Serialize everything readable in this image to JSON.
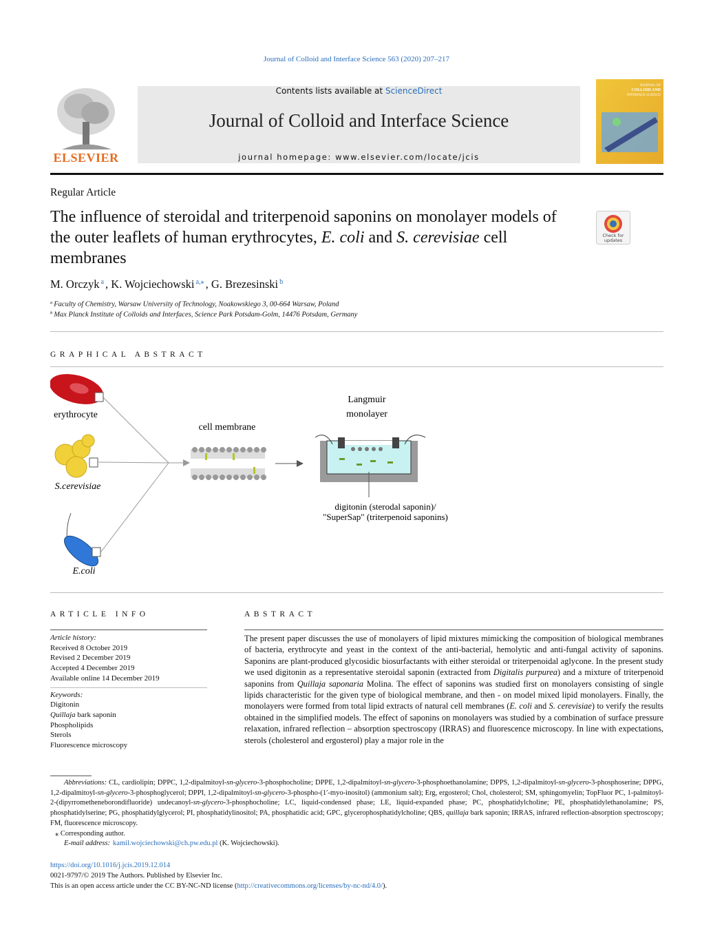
{
  "journal_ref": "Journal of Colloid and Interface Science 563 (2020) 207–217",
  "header": {
    "contents": "Contents lists available at",
    "sciencedirect": "ScienceDirect",
    "journal_title": "Journal of Colloid and Interface Science",
    "homepage": "journal homepage: www.elsevier.com/locate/jcis",
    "publisher": "ELSEVIER",
    "cover_title": [
      "JOURNAL OF",
      "COLLOID AND",
      "INTERFACE SCIENCE"
    ]
  },
  "badge": [
    "Check for",
    "updates"
  ],
  "article_type": "Regular Article",
  "title": [
    "The influence of steroidal and triterpenoid saponins on monolayer models of the outer leaflets of human erythrocytes, ",
    {
      "italic": "E. coli"
    },
    " and ",
    {
      "italic": "S. cerevisiae"
    },
    " cell membranes"
  ],
  "authors": [
    "M. Orczyk",
    {
      "sup": "a"
    },
    ", K. Wojciechowski",
    {
      "sup": "a,⁎"
    },
    ", G. Brezesinski",
    {
      "sup": "b"
    }
  ],
  "affiliations": [
    [
      {
        "sup": "a"
      },
      "Faculty of Chemistry, Warsaw University of Technology, Noakowskiego 3, 00-664 Warsaw, Poland"
    ],
    [
      {
        "sup": "b"
      },
      "Max Planck Institute of Colloids and Interfaces, Science Park Potsdam-Golm, 14476 Potsdam, Germany"
    ]
  ],
  "graphical_abstract": {
    "heading": "GRAPHICAL ABSTRACT",
    "labels": {
      "erythrocyte": "erythrocyte",
      "yeast": "S.cerevisiae",
      "bacteria": "E.coli",
      "membrane": "cell membrane",
      "langmuir": [
        "Langmuir",
        "monolayer"
      ],
      "saponins": [
        "digitonin (sterodal saponin)/",
        "\"SuperSap\" (triterpenoid saponins)"
      ]
    }
  },
  "article_info": {
    "heading": "ARTICLE INFO",
    "history_label": "Article history:",
    "history": [
      "Received 8 October 2019",
      "Revised 2 December 2019",
      "Accepted 4 December 2019",
      "Available online 14 December 2019"
    ],
    "keywords_label": "Keywords:",
    "keywords": [
      [
        "Digitonin"
      ],
      [
        {
          "italic": "Quillaja"
        },
        " bark saponin"
      ],
      [
        "Phospholipids"
      ],
      [
        "Sterols"
      ],
      [
        "Fluorescence microscopy"
      ]
    ]
  },
  "abstract": {
    "heading": "ABSTRACT",
    "text": [
      "The present paper discusses the use of monolayers of lipid mixtures mimicking the composition of biological membranes of bacteria, erythrocyte and yeast in the context of the anti-bacterial, hemolytic and anti-fungal activity of saponins. Saponins are plant-produced glycosidic biosurfactants with either steroidal or triterpenoidal aglycone. In the present study we used digitonin as a representative steroidal saponin (extracted from ",
      {
        "italic": "Digitalis purpurea"
      },
      ") and a mixture of triterpenoid saponins from ",
      {
        "italic": "Quillaja saponaria"
      },
      " Molina. The effect of saponins was studied first on monolayers consisting of single lipids characteristic for the given type of biological membrane, and then - on model mixed lipid monolayers. Finally, the monolayers were formed from total lipid extracts of natural cell membranes (",
      {
        "italic": "E. coli"
      },
      " and ",
      {
        "italic": "S. cerevisiae"
      },
      ") to verify the results obtained in the simplified models. The effect of saponins on monolayers was studied by a combination of surface pressure relaxation, infrared reflection – absorption spectroscopy (IRRAS) and fluorescence microscopy. In line with expectations, sterols (cholesterol and ergosterol) play a major role in the"
    ]
  },
  "footnotes": {
    "abbreviations": [
      {
        "italic": "Abbreviations:"
      },
      " CL, cardiolipin; DPPC, 1,2-dipalmitoyl-",
      {
        "italic": "sn-glycero"
      },
      "-3-phosphocholine; DPPE, 1,2-dipalmitoyl-",
      {
        "italic": "sn-glycero"
      },
      "-3-phosphoethanolamine; DPPS, 1,2-dipalmitoyl-",
      {
        "italic": "sn-glycero"
      },
      "-3-phosphoserine; DPPG, 1,2-dipalmitoyl-",
      {
        "italic": "sn-glycero"
      },
      "-3-phosphoglycerol; DPPI, 1,2-dipalmitoyl-",
      {
        "italic": "sn-glycero"
      },
      "-3-phospho-(1′-myo-inositol) (ammonium salt); Erg, ergosterol; Chol, cholesterol; SM, sphingomyelin; TopFluor PC, 1-palmitoyl-2-(dipyrrometheneborondifluoride) undecanoyl-",
      {
        "italic": "sn-glycero"
      },
      "-3-phosphocholine; LC, liquid-condensed phase; LE, liquid-expanded phase; PC, phosphatidylcholine; PE, phosphatidylethanolamine; PS, phosphatidylserine; PG, phosphatidylglycerol; PI, phosphatidylinositol; PA, phosphatidic acid; GPC, glycerophosphatidylcholine; QBS, ",
      {
        "italic": "quillaja"
      },
      " bark saponin; IRRAS, infrared reflection-absorption spectroscopy; FM, fluorescence microscopy."
    ],
    "corresponding": "⁎ Corresponding author.",
    "email": [
      {
        "italic": "E-mail address:"
      },
      {
        "link": "kamil.wojciechowski@ch.pw.edu.pl"
      },
      " (K. Wojciechowski)."
    ]
  },
  "footer": {
    "doi": "https://doi.org/10.1016/j.jcis.2019.12.014",
    "copyright": "0021-9797/© 2019 The Authors. Published by Elsevier Inc.",
    "license": [
      "This is an open access article under the CC BY-NC-ND license (",
      {
        "link": "http://creativecommons.org/licenses/by-nc-nd/4.0/"
      },
      ")."
    ]
  }
}
